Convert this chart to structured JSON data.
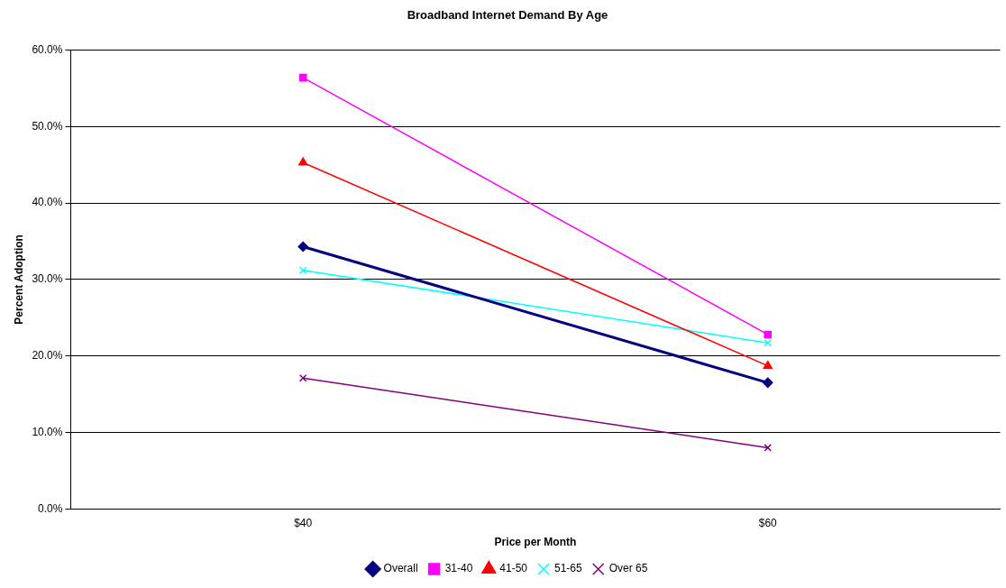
{
  "chart_data": {
    "type": "line",
    "title": "Broadband Internet Demand By Age",
    "xlabel": "Price per Month",
    "ylabel": "Percent Adoption",
    "categories": [
      "$40",
      "$60"
    ],
    "series": [
      {
        "name": "Overall",
        "color": "#000080",
        "values": [
          34.3,
          16.5
        ],
        "marker": "diamond"
      },
      {
        "name": "31-40",
        "color": "#ff00ff",
        "values": [
          56.4,
          22.8
        ],
        "marker": "square"
      },
      {
        "name": "41-50",
        "color": "#ff0000",
        "values": [
          45.3,
          18.7
        ],
        "marker": "triangle"
      },
      {
        "name": "51-65",
        "color": "#00ffff",
        "values": [
          31.2,
          21.7
        ],
        "marker": "cross"
      },
      {
        "name": "Over 65",
        "color": "#800080",
        "values": [
          17.1,
          8.0
        ],
        "marker": "cross"
      }
    ],
    "ylim": [
      0,
      60
    ],
    "yticks": [
      {
        "value": 0,
        "label": "0.0%"
      },
      {
        "value": 10,
        "label": "10.0%"
      },
      {
        "value": 20,
        "label": "20.0%"
      },
      {
        "value": 30,
        "label": "30.0%"
      },
      {
        "value": 40,
        "label": "40.0%"
      },
      {
        "value": 50,
        "label": "50.0%"
      },
      {
        "value": 60,
        "label": "60.0%"
      }
    ],
    "grid": "y",
    "legend": "bottom",
    "line_style": "solid"
  }
}
